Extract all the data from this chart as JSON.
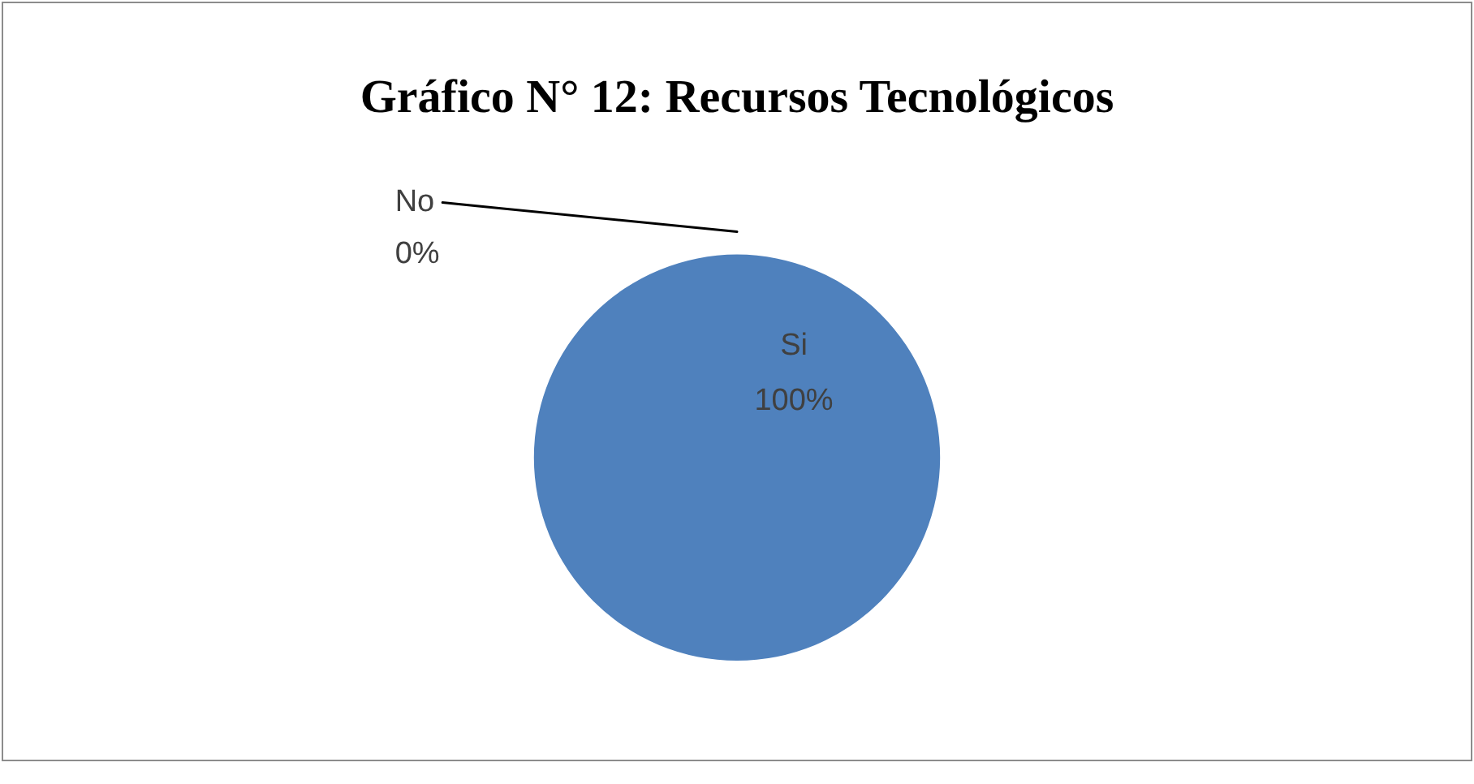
{
  "chart_data": {
    "type": "pie",
    "title": "Gráfico N° 12: Recursos Tecnológicos",
    "categories": [
      "Si",
      "No"
    ],
    "values": [
      100,
      0
    ],
    "colors": [
      "#4f81bd",
      "#c0504d"
    ],
    "value_labels": [
      "100%",
      "0%"
    ],
    "legend": false
  }
}
